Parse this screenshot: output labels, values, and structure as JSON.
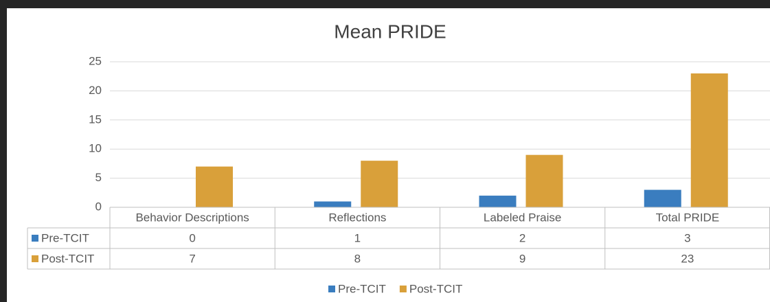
{
  "chart_data": {
    "type": "bar",
    "title": "Mean PRIDE",
    "categories": [
      "Behavior Descriptions",
      "Reflections",
      "Labeled Praise",
      "Total PRIDE"
    ],
    "series": [
      {
        "name": "Pre-TCIT",
        "color": "#3a7dbf",
        "values": [
          0,
          1,
          2,
          3
        ]
      },
      {
        "name": "Post-TCIT",
        "color": "#d9a03a",
        "values": [
          7,
          8,
          9,
          23
        ]
      }
    ],
    "ylim": [
      0,
      25
    ],
    "yticks": [
      0,
      5,
      10,
      15,
      20,
      25
    ],
    "grid": true,
    "legend": "bottom"
  }
}
